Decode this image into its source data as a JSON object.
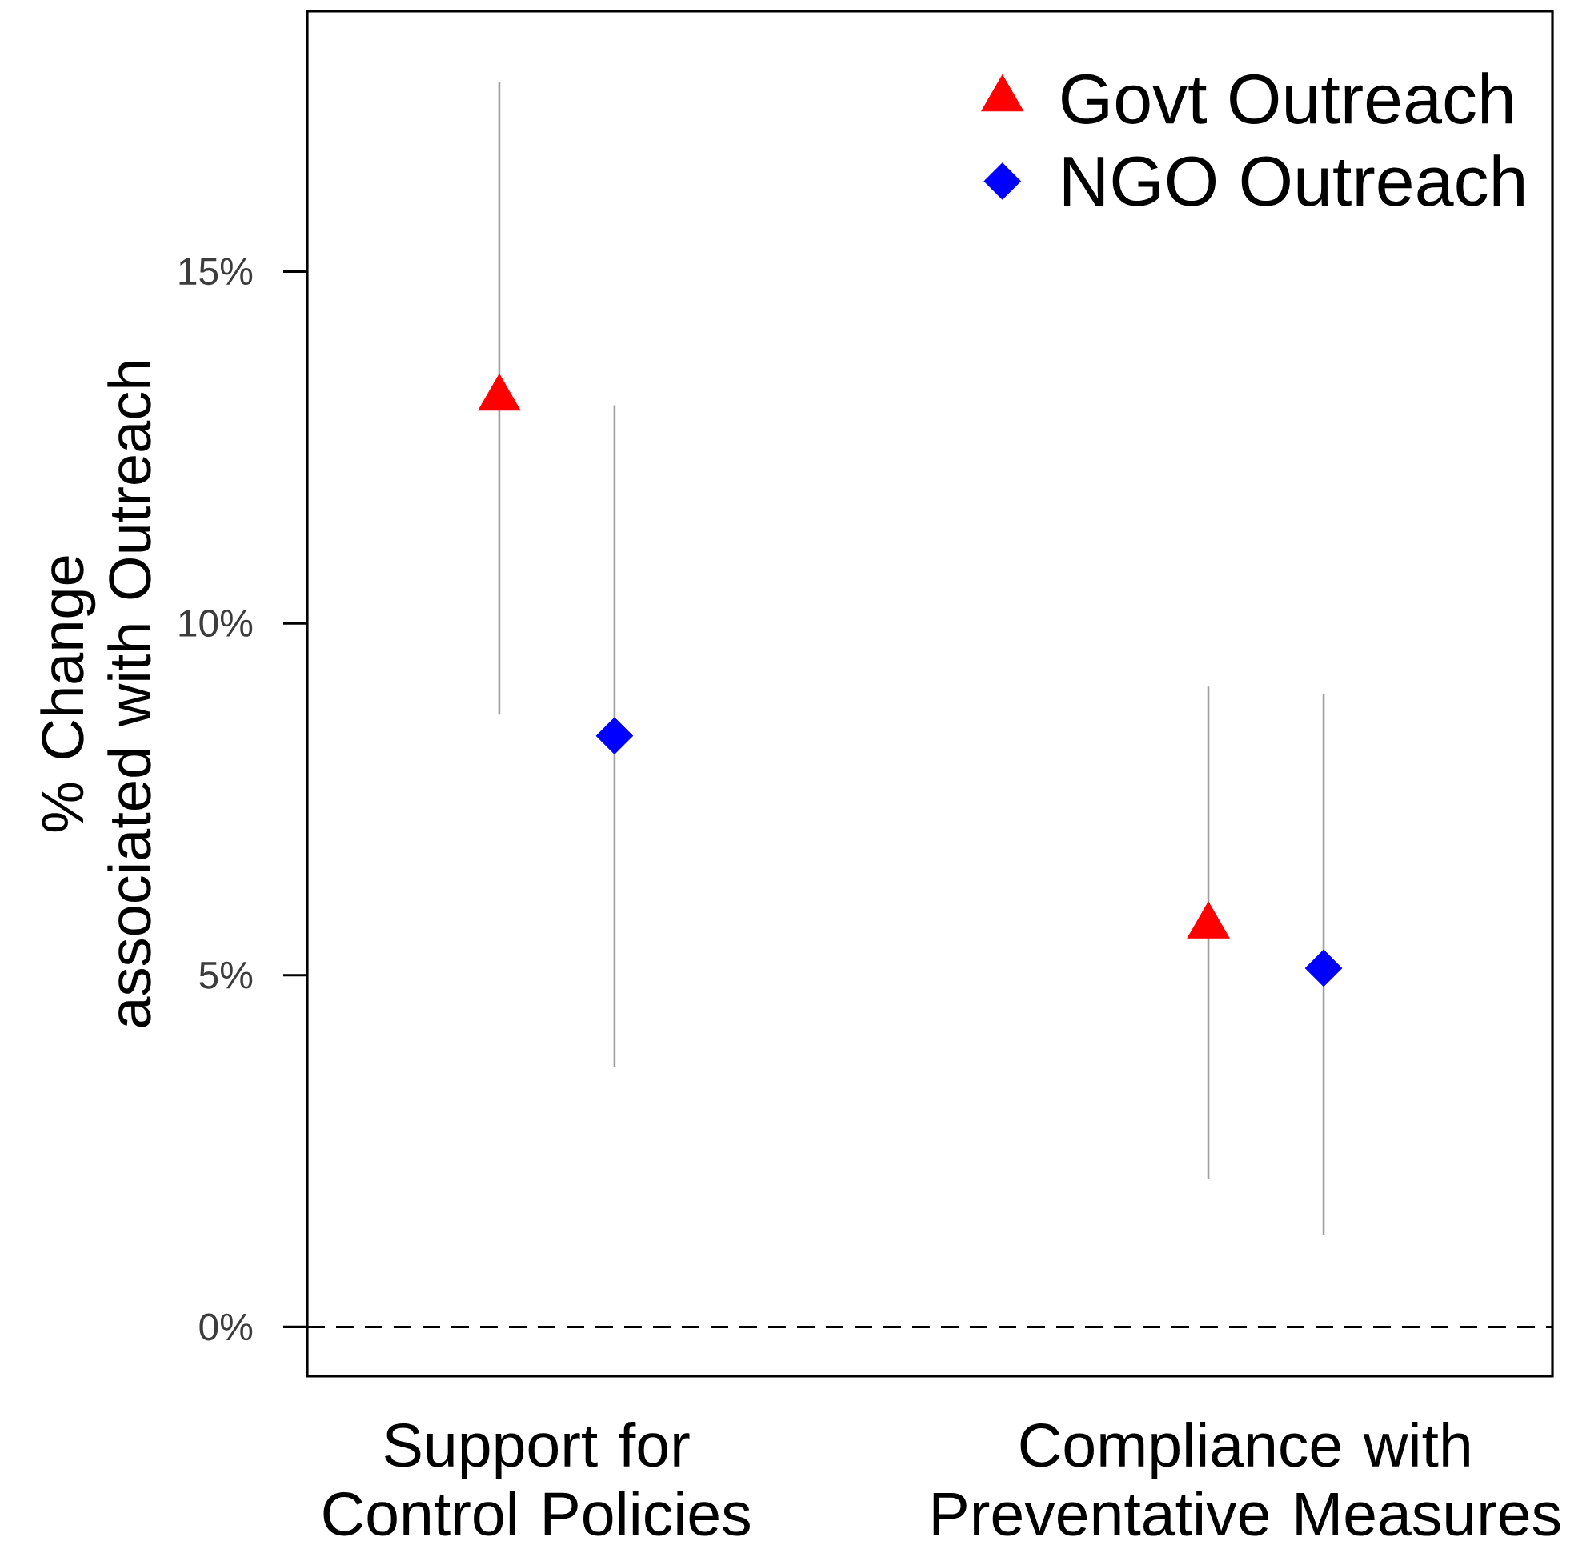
{
  "chart_data": {
    "type": "scatter",
    "ylabel": "% Change\nassociated with Outreach",
    "categories": [
      "Support for\nControl Policies",
      "Compliance with\nPreventative Measures"
    ],
    "series": [
      {
        "name": "Govt Outreach",
        "color": "#ff0000",
        "marker": "triangle",
        "values": [
          13.2,
          5.7
        ],
        "errors": [
          [
            8.7,
            17.7
          ],
          [
            2.1,
            9.1
          ]
        ]
      },
      {
        "name": "NGO Outreach",
        "color": "#0000ff",
        "marker": "diamond",
        "values": [
          8.4,
          5.1
        ],
        "errors": [
          [
            3.7,
            13.1
          ],
          [
            1.3,
            9.0
          ]
        ]
      }
    ],
    "ylim": [
      -0.7,
      18.7
    ],
    "yticks": [
      {
        "value": 0,
        "label": "0%"
      },
      {
        "value": 5,
        "label": "5%"
      },
      {
        "value": 10,
        "label": "10%"
      },
      {
        "value": 15,
        "label": "15%"
      }
    ],
    "ref_lines": [
      {
        "axis": "y",
        "value": 0,
        "color": "#000000",
        "line_style": "dashed"
      }
    ],
    "legend": "top right"
  }
}
